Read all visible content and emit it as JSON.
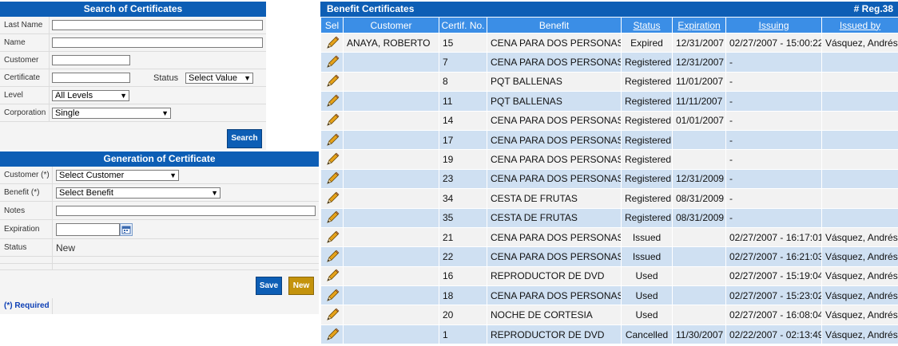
{
  "search": {
    "title": "Search of Certificates",
    "last_name_label": "Last Name",
    "last_name_value": "",
    "name_label": "Name",
    "name_value": "",
    "customer_label": "Customer",
    "customer_value": "",
    "certificate_label": "Certificate",
    "certificate_value": "",
    "status_label": "Status",
    "status_selected": "Select Value",
    "level_label": "Level",
    "level_selected": "All Levels",
    "corporation_label": "Corporation",
    "corporation_selected": "Single",
    "search_button": "Search"
  },
  "generation": {
    "title": "Generation of Certificate",
    "customer_label": "Customer (*)",
    "customer_selected": "Select Customer",
    "benefit_label": "Benefit (*)",
    "benefit_selected": "Select Benefit",
    "notes_label": "Notes",
    "notes_value": "",
    "expiration_label": "Expiration",
    "expiration_value": "",
    "status_label": "Status",
    "status_value": "New",
    "save_button": "Save",
    "new_button": "New",
    "required_note": "(*) Required"
  },
  "grid": {
    "title": "Benefit Certificates",
    "reg_count": "# Reg.38",
    "columns": [
      "Sel",
      "Customer",
      "Certif. No.",
      "Benefit",
      "Status",
      "Expiration",
      "Issuing",
      "Issued by"
    ],
    "rows": [
      {
        "customer": "ANAYA, ROBERTO",
        "certif": "15",
        "benefit": "CENA PARA DOS PERSONAS",
        "status": "Expired",
        "expiration": "12/31/2007",
        "issuing": "02/27/2007 - 15:00:22",
        "issued_by": "Vásquez, Andrés"
      },
      {
        "customer": "",
        "certif": "7",
        "benefit": "CENA PARA DOS PERSONAS",
        "status": "Registered",
        "expiration": "12/31/2007",
        "issuing": "-",
        "issued_by": ""
      },
      {
        "customer": "",
        "certif": "8",
        "benefit": "PQT BALLENAS",
        "status": "Registered",
        "expiration": "11/01/2007",
        "issuing": "-",
        "issued_by": ""
      },
      {
        "customer": "",
        "certif": "11",
        "benefit": "PQT BALLENAS",
        "status": "Registered",
        "expiration": "11/11/2007",
        "issuing": "-",
        "issued_by": ""
      },
      {
        "customer": "",
        "certif": "14",
        "benefit": "CENA PARA DOS PERSONAS",
        "status": "Registered",
        "expiration": "01/01/2007",
        "issuing": "-",
        "issued_by": ""
      },
      {
        "customer": "",
        "certif": "17",
        "benefit": "CENA PARA DOS PERSONAS",
        "status": "Registered",
        "expiration": "",
        "issuing": "-",
        "issued_by": ""
      },
      {
        "customer": "",
        "certif": "19",
        "benefit": "CENA PARA DOS PERSONAS",
        "status": "Registered",
        "expiration": "",
        "issuing": "-",
        "issued_by": ""
      },
      {
        "customer": "",
        "certif": "23",
        "benefit": "CENA PARA DOS PERSONAS",
        "status": "Registered",
        "expiration": "12/31/2009",
        "issuing": "-",
        "issued_by": ""
      },
      {
        "customer": "",
        "certif": "34",
        "benefit": "CESTA DE FRUTAS",
        "status": "Registered",
        "expiration": "08/31/2009",
        "issuing": "-",
        "issued_by": ""
      },
      {
        "customer": "",
        "certif": "35",
        "benefit": "CESTA DE FRUTAS",
        "status": "Registered",
        "expiration": "08/31/2009",
        "issuing": "-",
        "issued_by": ""
      },
      {
        "customer": "",
        "certif": "21",
        "benefit": "CENA PARA DOS PERSONAS",
        "status": "Issued",
        "expiration": "",
        "issuing": "02/27/2007 - 16:17:01",
        "issued_by": "Vásquez, Andrés"
      },
      {
        "customer": "",
        "certif": "22",
        "benefit": "CENA PARA DOS PERSONAS",
        "status": "Issued",
        "expiration": "",
        "issuing": "02/27/2007 - 16:21:03",
        "issued_by": "Vásquez, Andrés"
      },
      {
        "customer": "",
        "certif": "16",
        "benefit": "REPRODUCTOR DE DVD",
        "status": "Used",
        "expiration": "",
        "issuing": "02/27/2007 - 15:19:04",
        "issued_by": "Vásquez, Andrés"
      },
      {
        "customer": "",
        "certif": "18",
        "benefit": "CENA PARA DOS PERSONAS",
        "status": "Used",
        "expiration": "",
        "issuing": "02/27/2007 - 15:23:02",
        "issued_by": "Vásquez, Andrés"
      },
      {
        "customer": "",
        "certif": "20",
        "benefit": "NOCHE DE CORTESIA",
        "status": "Used",
        "expiration": "",
        "issuing": "02/27/2007 - 16:08:04",
        "issued_by": "Vásquez, Andrés"
      },
      {
        "customer": "",
        "certif": "1",
        "benefit": "REPRODUCTOR DE DVD",
        "status": "Cancelled",
        "expiration": "11/30/2007",
        "issuing": "02/22/2007 - 02:13:49",
        "issued_by": "Vásquez, Andrés"
      }
    ]
  },
  "colors": {
    "header_blue": "#0d5eb5",
    "column_header_blue": "#3b8ee6",
    "row_alt_blue": "#cfe0f2",
    "row_gray": "#f2f2f2",
    "new_button_gold": "#c4930d"
  },
  "icons": {
    "select_row": "pencil-icon",
    "calendar": "calendar-icon",
    "dropdown": "chevron-down-icon"
  }
}
